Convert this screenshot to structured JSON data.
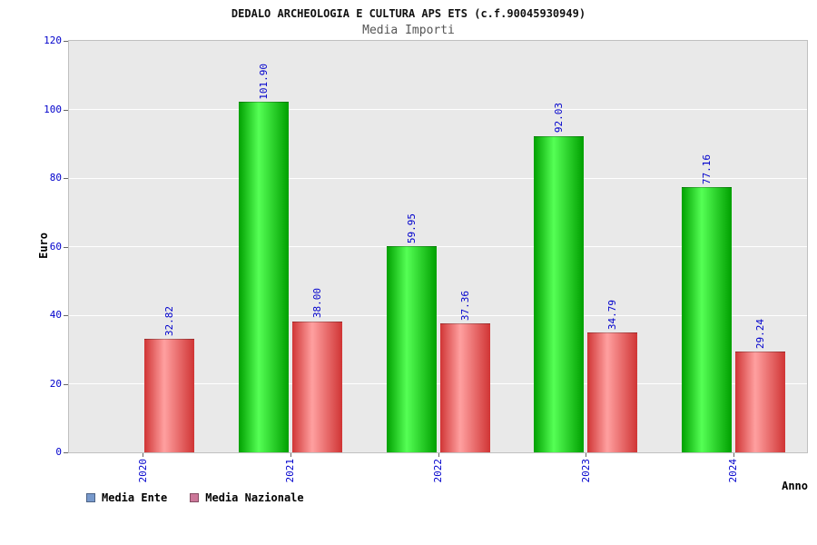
{
  "header": {
    "title": "DEDALO ARCHEOLOGIA E CULTURA APS ETS (c.f.90045930949)",
    "subtitle": "Media Importi"
  },
  "axes": {
    "ylabel": "Euro",
    "xlabel": "Anno"
  },
  "chart_data": {
    "type": "bar",
    "title": "DEDALO ARCHEOLOGIA E CULTURA APS ETS (c.f.90045930949)",
    "subtitle": "Media Importi",
    "categories": [
      "2020",
      "2021",
      "2022",
      "2023",
      "2024"
    ],
    "series": [
      {
        "name": "Media Ente",
        "values": [
          0,
          101.9,
          59.95,
          92.03,
          77.16
        ],
        "labels": [
          "",
          "101.90",
          "59.95",
          "92.03",
          "77.16"
        ],
        "bar_edge_color": "#00a000",
        "bar_mid_color": "#55ff55"
      },
      {
        "name": "Media Nazionale",
        "values": [
          32.82,
          38.0,
          37.36,
          34.79,
          29.24
        ],
        "labels": [
          "32.82",
          "38.00",
          "37.36",
          "34.79",
          "29.24"
        ],
        "bar_edge_color": "#d03535",
        "bar_mid_color": "#ffa0a0"
      }
    ],
    "ylabel": "Euro",
    "xlabel": "Anno",
    "ylim": [
      0,
      120
    ],
    "ytick_step": 20,
    "yticks": [
      0,
      20,
      40,
      60,
      80,
      100,
      120
    ],
    "grid": true,
    "legend_position": "bottom-left",
    "colors": {
      "axis_text": "#0000cc",
      "value_label": "#0000cc",
      "plot_bg": "#e9e9e9",
      "grid": "#ffffff"
    }
  },
  "legend": {
    "items": [
      {
        "label": "Media Ente",
        "swatch": "#7799cc"
      },
      {
        "label": "Media Nazionale",
        "swatch": "#cc7799"
      }
    ]
  }
}
